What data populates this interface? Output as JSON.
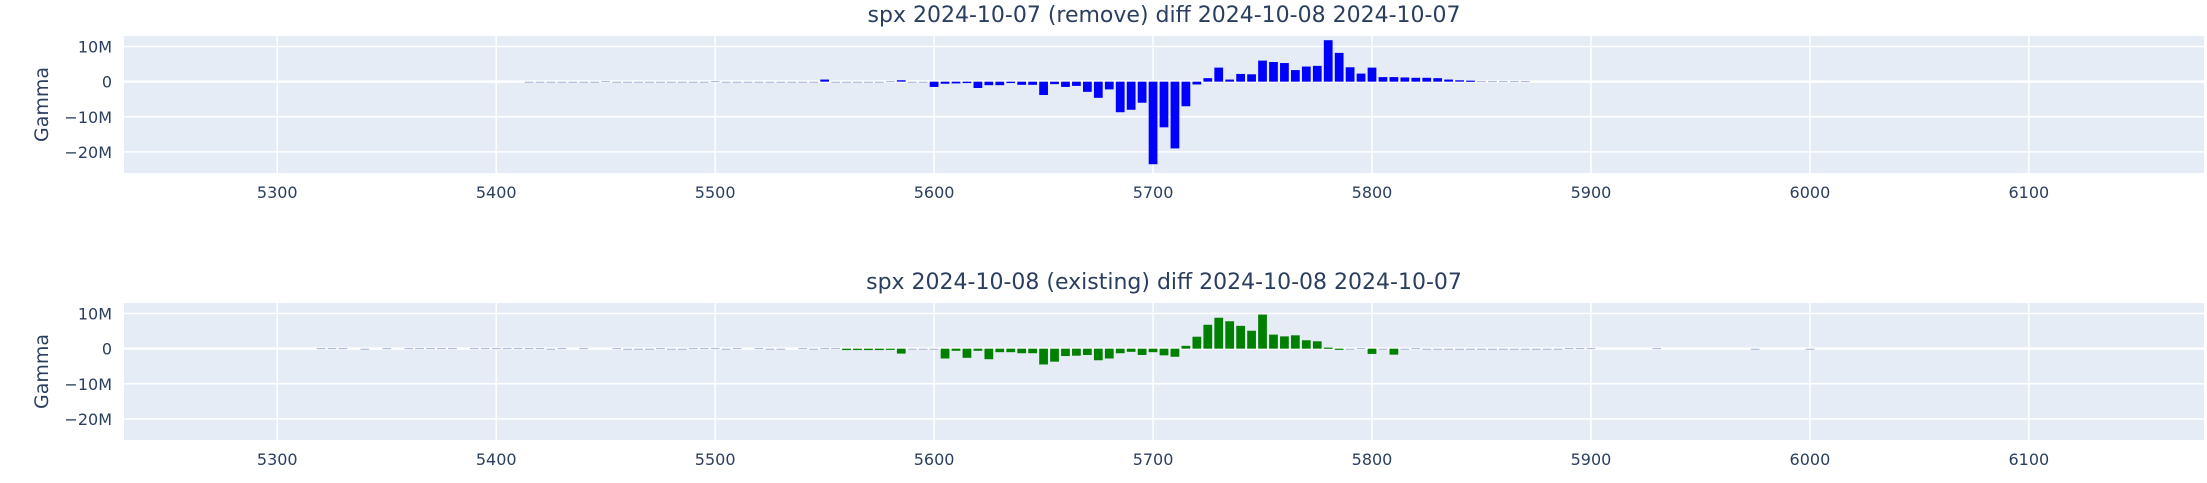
{
  "chart_data": [
    {
      "type": "bar",
      "title": "spx 2024-10-07 (remove) diff 2024-10-08 2024-10-07",
      "xlabel": "",
      "ylabel": "Gamma",
      "xlim": [
        5230,
        6180
      ],
      "ylim": [
        -26000000,
        13000000
      ],
      "x_ticks": [
        5300,
        5400,
        5500,
        5600,
        5700,
        5800,
        5900,
        6000,
        6100
      ],
      "y_ticks": [
        10000000,
        0,
        -10000000,
        -20000000
      ],
      "y_tick_labels": [
        "10M",
        "0",
        "−10M",
        "−20M"
      ],
      "grid": true,
      "bar_color": "#0000ff",
      "x": [
        5415,
        5420,
        5425,
        5430,
        5435,
        5440,
        5445,
        5450,
        5455,
        5460,
        5465,
        5470,
        5475,
        5480,
        5485,
        5490,
        5495,
        5500,
        5505,
        5510,
        5515,
        5520,
        5525,
        5530,
        5535,
        5540,
        5545,
        5550,
        5555,
        5560,
        5565,
        5570,
        5575,
        5580,
        5585,
        5590,
        5595,
        5600,
        5605,
        5610,
        5615,
        5620,
        5625,
        5630,
        5635,
        5640,
        5645,
        5650,
        5655,
        5660,
        5665,
        5670,
        5675,
        5680,
        5685,
        5690,
        5695,
        5700,
        5705,
        5710,
        5715,
        5720,
        5725,
        5730,
        5735,
        5740,
        5745,
        5750,
        5755,
        5760,
        5765,
        5770,
        5775,
        5780,
        5785,
        5790,
        5795,
        5800,
        5805,
        5810,
        5815,
        5820,
        5825,
        5830,
        5835,
        5840,
        5845,
        5850,
        5855,
        5860,
        5865,
        5870
      ],
      "values": [
        -200000,
        -200000,
        -200000,
        -200000,
        -200000,
        -200000,
        -200000,
        200000,
        -200000,
        -200000,
        -200000,
        -200000,
        -200000,
        -200000,
        -200000,
        -200000,
        -200000,
        200000,
        -200000,
        -200000,
        -200000,
        -200000,
        -200000,
        -200000,
        -200000,
        -200000,
        -200000,
        600000,
        -200000,
        -200000,
        -200000,
        -200000,
        -200000,
        200000,
        400000,
        -200000,
        -200000,
        -1500000,
        -600000,
        -500000,
        -400000,
        -1800000,
        -1000000,
        -1000000,
        -400000,
        -900000,
        -900000,
        -3800000,
        -700000,
        -1500000,
        -1200000,
        -2900000,
        -4600000,
        -2200000,
        -8700000,
        -8000000,
        -6000000,
        -23500000,
        -13000000,
        -19000000,
        -7000000,
        -800000,
        1000000,
        4000000,
        600000,
        2200000,
        2100000,
        6000000,
        5600000,
        5300000,
        3300000,
        4300000,
        4500000,
        11800000,
        8200000,
        4100000,
        2300000,
        4000000,
        1300000,
        1300000,
        1200000,
        1100000,
        1100000,
        1000000,
        600000,
        400000,
        300000,
        200000,
        200000,
        200000,
        200000,
        200000
      ]
    },
    {
      "type": "bar",
      "title": "spx 2024-10-08 (existing) diff 2024-10-08 2024-10-07",
      "xlabel": "",
      "ylabel": "Gamma",
      "xlim": [
        5230,
        6180
      ],
      "ylim": [
        -26000000,
        13000000
      ],
      "x_ticks": [
        5300,
        5400,
        5500,
        5600,
        5700,
        5800,
        5900,
        6000,
        6100
      ],
      "y_ticks": [
        10000000,
        0,
        -10000000,
        -20000000
      ],
      "y_tick_labels": [
        "10M",
        "0",
        "−10M",
        "−20M"
      ],
      "grid": true,
      "bar_color": "#008000",
      "x": [
        5320,
        5325,
        5330,
        5340,
        5350,
        5360,
        5365,
        5370,
        5375,
        5380,
        5390,
        5395,
        5400,
        5405,
        5410,
        5415,
        5420,
        5425,
        5430,
        5440,
        5455,
        5460,
        5465,
        5470,
        5475,
        5480,
        5485,
        5490,
        5495,
        5500,
        5505,
        5510,
        5520,
        5525,
        5530,
        5540,
        5545,
        5550,
        5555,
        5560,
        5565,
        5570,
        5575,
        5580,
        5585,
        5590,
        5595,
        5600,
        5605,
        5610,
        5615,
        5620,
        5625,
        5630,
        5635,
        5640,
        5645,
        5650,
        5655,
        5660,
        5665,
        5670,
        5675,
        5680,
        5685,
        5690,
        5695,
        5700,
        5705,
        5710,
        5715,
        5720,
        5725,
        5730,
        5735,
        5740,
        5745,
        5750,
        5755,
        5760,
        5765,
        5770,
        5775,
        5780,
        5785,
        5790,
        5795,
        5800,
        5805,
        5810,
        5815,
        5820,
        5825,
        5830,
        5835,
        5840,
        5845,
        5850,
        5855,
        5860,
        5865,
        5870,
        5875,
        5880,
        5885,
        5890,
        5895,
        5900,
        5930,
        5975,
        6000
      ],
      "values": [
        200000,
        200000,
        200000,
        -200000,
        200000,
        200000,
        200000,
        200000,
        200000,
        200000,
        200000,
        200000,
        200000,
        200000,
        200000,
        200000,
        200000,
        -200000,
        200000,
        200000,
        200000,
        -200000,
        -200000,
        -200000,
        200000,
        -200000,
        -200000,
        200000,
        200000,
        200000,
        -200000,
        200000,
        200000,
        -200000,
        -200000,
        200000,
        -200000,
        200000,
        200000,
        -400000,
        -400000,
        -400000,
        -400000,
        -300000,
        -1400000,
        -200000,
        -200000,
        -200000,
        -2800000,
        -600000,
        -2600000,
        -600000,
        -3000000,
        -1000000,
        -1000000,
        -1300000,
        -1300000,
        -4500000,
        -3700000,
        -2100000,
        -2000000,
        -1800000,
        -3300000,
        -2800000,
        -1300000,
        -900000,
        -1800000,
        -1000000,
        -1900000,
        -2300000,
        800000,
        3400000,
        6800000,
        8800000,
        7800000,
        6500000,
        5100000,
        9700000,
        4000000,
        3500000,
        3800000,
        2400000,
        2100000,
        300000,
        -300000,
        -200000,
        200000,
        -1500000,
        -200000,
        -1700000,
        -200000,
        200000,
        -200000,
        -200000,
        -200000,
        -200000,
        -200000,
        -200000,
        -200000,
        -200000,
        -200000,
        -200000,
        -200000,
        -200000,
        -200000,
        200000,
        200000,
        200000,
        200000,
        -200000,
        -200000
      ]
    }
  ]
}
